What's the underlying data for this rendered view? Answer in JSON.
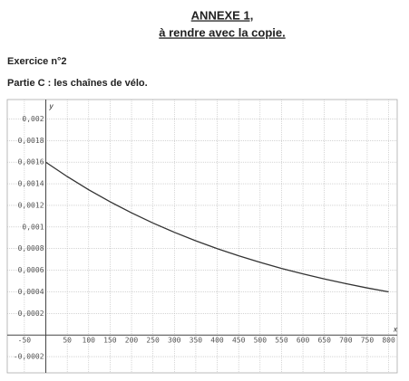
{
  "header": {
    "title": "ANNEXE 1,",
    "subtitle": "à rendre avec la copie."
  },
  "exercise": "Exercice n°2",
  "part": "Partie C : les chaînes de vélo.",
  "chart_data": {
    "type": "line",
    "x_label": "x",
    "y_label": "y",
    "x": [
      0,
      50,
      100,
      150,
      200,
      250,
      300,
      350,
      400,
      450,
      500,
      550,
      600,
      650,
      700,
      750,
      800
    ],
    "series": [
      {
        "color": "#333333",
        "values": [
          0.0016,
          0.001467,
          0.001345,
          0.001234,
          0.001131,
          0.001037,
          0.000951,
          0.000872,
          0.0008,
          0.000734,
          0.000673,
          0.000617,
          0.000566,
          0.000519,
          0.000476,
          0.000436,
          0.0004
        ]
      }
    ],
    "xlim": [
      -90,
      820
    ],
    "ylim": [
      -0.00035,
      0.00218
    ],
    "xticks": [
      -50,
      50,
      100,
      150,
      200,
      250,
      300,
      350,
      400,
      450,
      500,
      550,
      600,
      650,
      700,
      750,
      800
    ],
    "yticks": [
      {
        "value": -0.0002,
        "label": "-0,0002"
      },
      {
        "value": 0.0002,
        "label": "0,0002"
      },
      {
        "value": 0.0004,
        "label": "0,0004"
      },
      {
        "value": 0.0006,
        "label": "0,0006"
      },
      {
        "value": 0.0008,
        "label": "0,0008"
      },
      {
        "value": 0.001,
        "label": "0,001"
      },
      {
        "value": 0.0012,
        "label": "0,0012"
      },
      {
        "value": 0.0014,
        "label": "0,0014"
      },
      {
        "value": 0.0016,
        "label": "0,0016"
      },
      {
        "value": 0.0018,
        "label": "0,0018"
      },
      {
        "value": 0.002,
        "label": "0,002"
      }
    ],
    "grid": true
  }
}
